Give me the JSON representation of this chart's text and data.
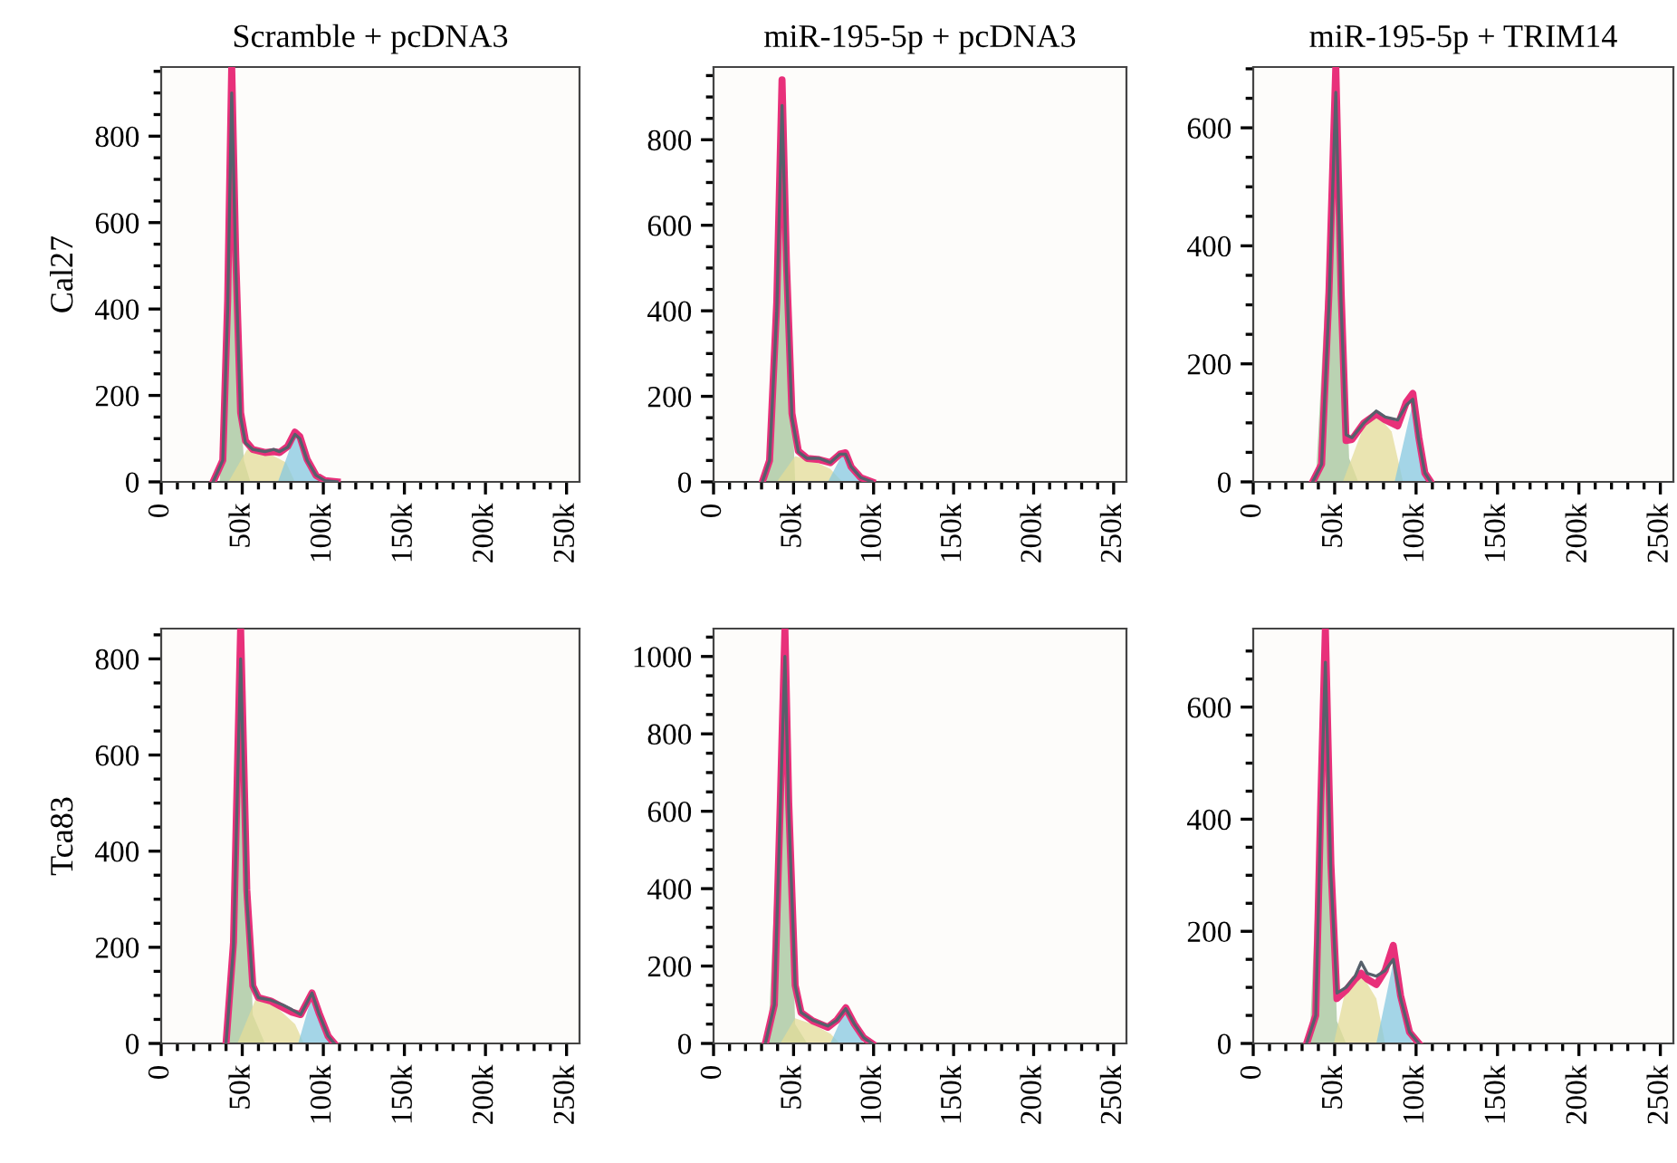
{
  "chart_data": [
    {
      "type": "area",
      "title": "Scramble + pcDNA3",
      "ylabel": "Cal27",
      "xlim": [
        0,
        258000
      ],
      "ylim": [
        0,
        960
      ],
      "xticks": [
        {
          "value": 0,
          "label": "0"
        },
        {
          "value": 50000,
          "label": "50k"
        },
        {
          "value": 100000,
          "label": "100k"
        },
        {
          "value": 150000,
          "label": "150k"
        },
        {
          "value": 200000,
          "label": "200k"
        },
        {
          "value": 250000,
          "label": "250k"
        }
      ],
      "yticks": [
        0,
        200,
        400,
        600,
        800
      ],
      "series": [
        {
          "type": "area",
          "color": "#a3c49a",
          "x": [
            36000,
            40000,
            43500,
            47000,
            51000,
            55000
          ],
          "values": [
            0,
            200,
            880,
            300,
            50,
            0
          ]
        },
        {
          "type": "area",
          "color": "#e3dc98",
          "x": [
            41500,
            53000,
            64000,
            77000,
            82500
          ],
          "values": [
            0,
            75,
            70,
            45,
            0
          ]
        },
        {
          "type": "area",
          "color": "#86c8e0",
          "x": [
            72000,
            82500,
            86000,
            92000,
            97500
          ],
          "values": [
            0,
            110,
            90,
            30,
            0
          ]
        },
        {
          "type": "line",
          "color": "#e8307a",
          "x": [
            32000,
            38000,
            41000,
            43500,
            46000,
            49000,
            52000,
            56500,
            64000,
            69500,
            73000,
            78000,
            82500,
            85500,
            90000,
            95500,
            101000,
            108500
          ],
          "values": [
            0,
            50,
            420,
            960,
            520,
            160,
            95,
            75,
            68,
            70,
            68,
            82,
            115,
            105,
            52,
            15,
            3,
            0
          ]
        },
        {
          "type": "line",
          "color": "#56606b",
          "x": [
            32000,
            38000,
            41000,
            43500,
            46000,
            49000,
            52000,
            56500,
            64000,
            69500,
            73000,
            78000,
            82500,
            85500,
            90000,
            95500,
            101000,
            108500
          ],
          "values": [
            0,
            50,
            400,
            900,
            500,
            150,
            90,
            75,
            70,
            75,
            70,
            80,
            110,
            100,
            50,
            15,
            3,
            0
          ]
        }
      ]
    },
    {
      "type": "area",
      "title": "miR-195-5p + pcDNA3",
      "xlim": [
        0,
        258000
      ],
      "ylim": [
        0,
        970
      ],
      "xticks": [
        {
          "value": 0,
          "label": "0"
        },
        {
          "value": 50000,
          "label": "50k"
        },
        {
          "value": 100000,
          "label": "100k"
        },
        {
          "value": 150000,
          "label": "150k"
        },
        {
          "value": 200000,
          "label": "200k"
        },
        {
          "value": 250000,
          "label": "250k"
        }
      ],
      "yticks": [
        0,
        200,
        400,
        600,
        800
      ],
      "series": [
        {
          "type": "area",
          "color": "#a3c49a",
          "x": [
            33000,
            42800,
            51000
          ],
          "values": [
            0,
            860,
            0
          ]
        },
        {
          "type": "area",
          "color": "#e3dc98",
          "x": [
            39500,
            51000,
            62000,
            73000,
            80500
          ],
          "values": [
            0,
            60,
            50,
            30,
            0
          ]
        },
        {
          "type": "area",
          "color": "#86c8e0",
          "x": [
            71500,
            80500,
            84500,
            92000
          ],
          "values": [
            0,
            65,
            55,
            0
          ]
        },
        {
          "type": "line",
          "color": "#e8307a",
          "x": [
            30500,
            35000,
            39500,
            42800,
            45500,
            49000,
            53000,
            58500,
            66000,
            73000,
            79000,
            82500,
            86000,
            92000,
            99000
          ],
          "values": [
            0,
            50,
            420,
            940,
            520,
            160,
            72,
            55,
            52,
            45,
            65,
            68,
            35,
            10,
            0
          ]
        },
        {
          "type": "line",
          "color": "#56606b",
          "x": [
            30500,
            35000,
            39500,
            42800,
            45500,
            49000,
            53000,
            58500,
            66000,
            73000,
            79000,
            82500,
            86000,
            92000,
            99000
          ],
          "values": [
            0,
            50,
            400,
            880,
            500,
            150,
            70,
            55,
            55,
            45,
            65,
            65,
            35,
            10,
            0
          ]
        }
      ]
    },
    {
      "type": "area",
      "title": "miR-195-5p + TRIM14",
      "xlim": [
        0,
        258000
      ],
      "ylim": [
        0,
        703
      ],
      "xticks": [
        {
          "value": 0,
          "label": "0"
        },
        {
          "value": 50000,
          "label": "50k"
        },
        {
          "value": 100000,
          "label": "100k"
        },
        {
          "value": 150000,
          "label": "150k"
        },
        {
          "value": 200000,
          "label": "200k"
        },
        {
          "value": 250000,
          "label": "250k"
        }
      ],
      "yticks": [
        0,
        200,
        400,
        600
      ],
      "series": [
        {
          "type": "area",
          "color": "#a3c49a",
          "x": [
            38400,
            50700,
            58900,
            64500
          ],
          "values": [
            0,
            650,
            40,
            0
          ]
        },
        {
          "type": "area",
          "color": "#e3dc98",
          "x": [
            55000,
            68000,
            75600,
            85000,
            92000
          ],
          "values": [
            0,
            95,
            115,
            85,
            0
          ]
        },
        {
          "type": "area",
          "color": "#86c8e0",
          "x": [
            86800,
            98000,
            103600,
            107300
          ],
          "values": [
            0,
            135,
            40,
            0
          ]
        },
        {
          "type": "line",
          "color": "#e8307a",
          "x": [
            36500,
            42000,
            46500,
            50700,
            54000,
            57000,
            60700,
            68000,
            75600,
            81000,
            88700,
            94000,
            98000,
            101700,
            105400,
            109000
          ],
          "values": [
            0,
            30,
            320,
            703,
            320,
            70,
            72,
            100,
            115,
            105,
            95,
            135,
            150,
            75,
            15,
            0
          ]
        },
        {
          "type": "line",
          "color": "#56606b",
          "x": [
            36500,
            42000,
            46500,
            50700,
            54000,
            57000,
            60700,
            68000,
            75600,
            81000,
            88700,
            94000,
            98000,
            101700,
            105400,
            109000
          ],
          "values": [
            0,
            30,
            300,
            660,
            300,
            80,
            75,
            100,
            120,
            110,
            105,
            130,
            140,
            70,
            15,
            0
          ]
        }
      ]
    },
    {
      "type": "area",
      "ylabel": "Tca83",
      "xlim": [
        0,
        258000
      ],
      "ylim": [
        0,
        863
      ],
      "xticks": [
        {
          "value": 0,
          "label": "0"
        },
        {
          "value": 50000,
          "label": "50k"
        },
        {
          "value": 100000,
          "label": "100k"
        },
        {
          "value": 150000,
          "label": "150k"
        },
        {
          "value": 200000,
          "label": "200k"
        },
        {
          "value": 250000,
          "label": "250k"
        }
      ],
      "yticks": [
        0,
        200,
        400,
        600,
        800
      ],
      "series": [
        {
          "type": "area",
          "color": "#a3c49a",
          "x": [
            41700,
            49000,
            56500,
            64000
          ],
          "values": [
            0,
            790,
            60,
            0
          ]
        },
        {
          "type": "area",
          "color": "#e3dc98",
          "x": [
            47000,
            58000,
            69600,
            82600,
            88000
          ],
          "values": [
            0,
            90,
            80,
            40,
            0
          ]
        },
        {
          "type": "area",
          "color": "#86c8e0",
          "x": [
            84500,
            93000,
            99500,
            105000
          ],
          "values": [
            0,
            100,
            40,
            0
          ]
        },
        {
          "type": "line",
          "color": "#e8307a",
          "x": [
            40000,
            44600,
            49000,
            52800,
            56500,
            60000,
            67700,
            75000,
            80700,
            86000,
            93000,
            97500,
            103000,
            106800
          ],
          "values": [
            0,
            210,
            863,
            320,
            120,
            95,
            88,
            75,
            65,
            60,
            105,
            62,
            15,
            0
          ]
        },
        {
          "type": "line",
          "color": "#56606b",
          "x": [
            40000,
            44600,
            49000,
            52800,
            56500,
            60000,
            67700,
            75000,
            80700,
            86000,
            93000,
            97500,
            103000,
            106800
          ],
          "values": [
            0,
            200,
            800,
            300,
            120,
            95,
            90,
            80,
            70,
            60,
            105,
            60,
            15,
            0
          ]
        }
      ]
    },
    {
      "type": "area",
      "xlim": [
        0,
        258000
      ],
      "ylim": [
        0,
        1072
      ],
      "xticks": [
        {
          "value": 0,
          "label": "0"
        },
        {
          "value": 50000,
          "label": "50k"
        },
        {
          "value": 100000,
          "label": "100k"
        },
        {
          "value": 150000,
          "label": "150k"
        },
        {
          "value": 200000,
          "label": "200k"
        },
        {
          "value": 250000,
          "label": "250k"
        }
      ],
      "yticks": [
        0,
        200,
        400,
        600,
        800,
        1000
      ],
      "series": [
        {
          "type": "area",
          "color": "#a3c49a",
          "x": [
            34000,
            44600,
            51000,
            58500
          ],
          "values": [
            0,
            980,
            50,
            0
          ]
        },
        {
          "type": "area",
          "color": "#e3dc98",
          "x": [
            41700,
            51000,
            62000,
            73000,
            79000
          ],
          "values": [
            0,
            65,
            50,
            25,
            0
          ]
        },
        {
          "type": "area",
          "color": "#86c8e0",
          "x": [
            73000,
            82600,
            88000,
            93800
          ],
          "values": [
            0,
            90,
            40,
            0
          ]
        },
        {
          "type": "line",
          "color": "#e8307a",
          "x": [
            32400,
            38000,
            41700,
            44600,
            47000,
            51000,
            54700,
            62000,
            71400,
            77000,
            82600,
            88000,
            93800,
            99000
          ],
          "values": [
            0,
            100,
            620,
            1072,
            620,
            150,
            80,
            58,
            42,
            60,
            92,
            50,
            15,
            0
          ]
        },
        {
          "type": "line",
          "color": "#56606b",
          "x": [
            32400,
            38000,
            41700,
            44600,
            47000,
            51000,
            54700,
            62000,
            71400,
            77000,
            82600,
            88000,
            93800,
            99000
          ],
          "values": [
            0,
            100,
            600,
            1000,
            600,
            150,
            80,
            60,
            45,
            60,
            90,
            50,
            15,
            0
          ]
        }
      ]
    },
    {
      "type": "area",
      "xlim": [
        0,
        258000
      ],
      "ylim": [
        0,
        740
      ],
      "xticks": [
        {
          "value": 0,
          "label": "0"
        },
        {
          "value": 50000,
          "label": "50k"
        },
        {
          "value": 100000,
          "label": "100k"
        },
        {
          "value": 150000,
          "label": "150k"
        },
        {
          "value": 200000,
          "label": "200k"
        },
        {
          "value": 250000,
          "label": "250k"
        }
      ],
      "yticks": [
        0,
        200,
        400,
        600
      ],
      "series": [
        {
          "type": "area",
          "color": "#a3c49a",
          "x": [
            34600,
            44300,
            51400,
            57000
          ],
          "values": [
            0,
            670,
            40,
            0
          ]
        },
        {
          "type": "area",
          "color": "#e3dc98",
          "x": [
            49500,
            57000,
            66300,
            75600,
            81000
          ],
          "values": [
            0,
            100,
            125,
            80,
            0
          ]
        },
        {
          "type": "area",
          "color": "#86c8e0",
          "x": [
            75600,
            86000,
            92300,
            98000
          ],
          "values": [
            0,
            145,
            40,
            0
          ]
        },
        {
          "type": "line",
          "color": "#e8307a",
          "x": [
            32800,
            38400,
            41400,
            44300,
            47700,
            51400,
            57000,
            62600,
            66300,
            70000,
            75600,
            81000,
            86000,
            90500,
            96000,
            101700
          ],
          "values": [
            0,
            50,
            420,
            740,
            320,
            80,
            95,
            115,
            125,
            115,
            105,
            130,
            175,
            85,
            20,
            0
          ]
        },
        {
          "type": "line",
          "color": "#56606b",
          "x": [
            32800,
            38400,
            41400,
            44300,
            47700,
            51400,
            57000,
            62600,
            66300,
            70000,
            75600,
            81000,
            86000,
            90500,
            96000,
            101700
          ],
          "values": [
            0,
            50,
            400,
            680,
            300,
            90,
            100,
            120,
            145,
            125,
            120,
            130,
            150,
            80,
            20,
            0
          ]
        }
      ]
    }
  ]
}
